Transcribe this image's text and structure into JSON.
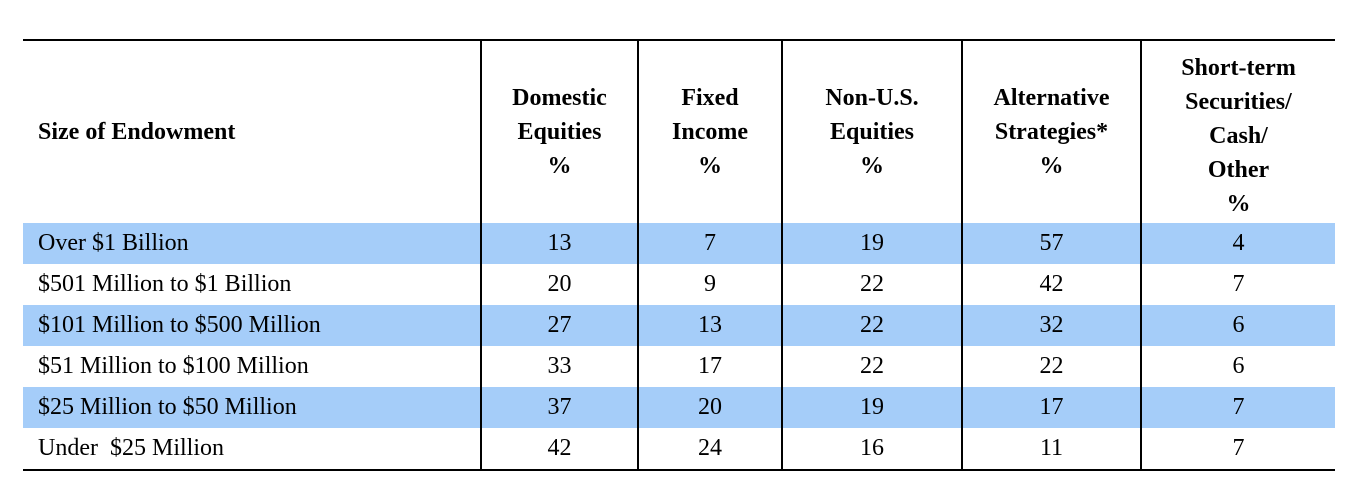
{
  "table": {
    "headers": [
      {
        "lines": [
          "Size of Endowment"
        ]
      },
      {
        "lines": [
          "Domestic",
          "Equities",
          "%"
        ]
      },
      {
        "lines": [
          "Fixed",
          "Income",
          "%"
        ]
      },
      {
        "lines": [
          "Non-U.S.",
          "Equities",
          "%"
        ]
      },
      {
        "lines": [
          "Alternative",
          "Strategies*",
          "%"
        ]
      },
      {
        "lines": [
          "Short-term",
          "Securities/",
          "Cash/",
          "Other",
          "%"
        ]
      }
    ],
    "rows": [
      {
        "label": "Over $1 Billion",
        "cells": [
          "13",
          "7",
          "19",
          "57",
          "4"
        ],
        "shaded": true
      },
      {
        "label": "$501 Million to $1 Billion",
        "cells": [
          "20",
          "9",
          "22",
          "42",
          "7"
        ],
        "shaded": false
      },
      {
        "label": "$101 Million to $500 Million",
        "cells": [
          "27",
          "13",
          "22",
          "32",
          "6"
        ],
        "shaded": true
      },
      {
        "label": "$51 Million to $100 Million",
        "cells": [
          "33",
          "17",
          "22",
          "22",
          "6"
        ],
        "shaded": false
      },
      {
        "label": "$25 Million to $50 Million",
        "cells": [
          "37",
          "20",
          "19",
          "17",
          "7"
        ],
        "shaded": true
      },
      {
        "label": "Under  $25 Million",
        "cells": [
          "42",
          "24",
          "16",
          "11",
          "7"
        ],
        "shaded": false
      }
    ],
    "row_highlight_color": "#a5cdf9"
  }
}
